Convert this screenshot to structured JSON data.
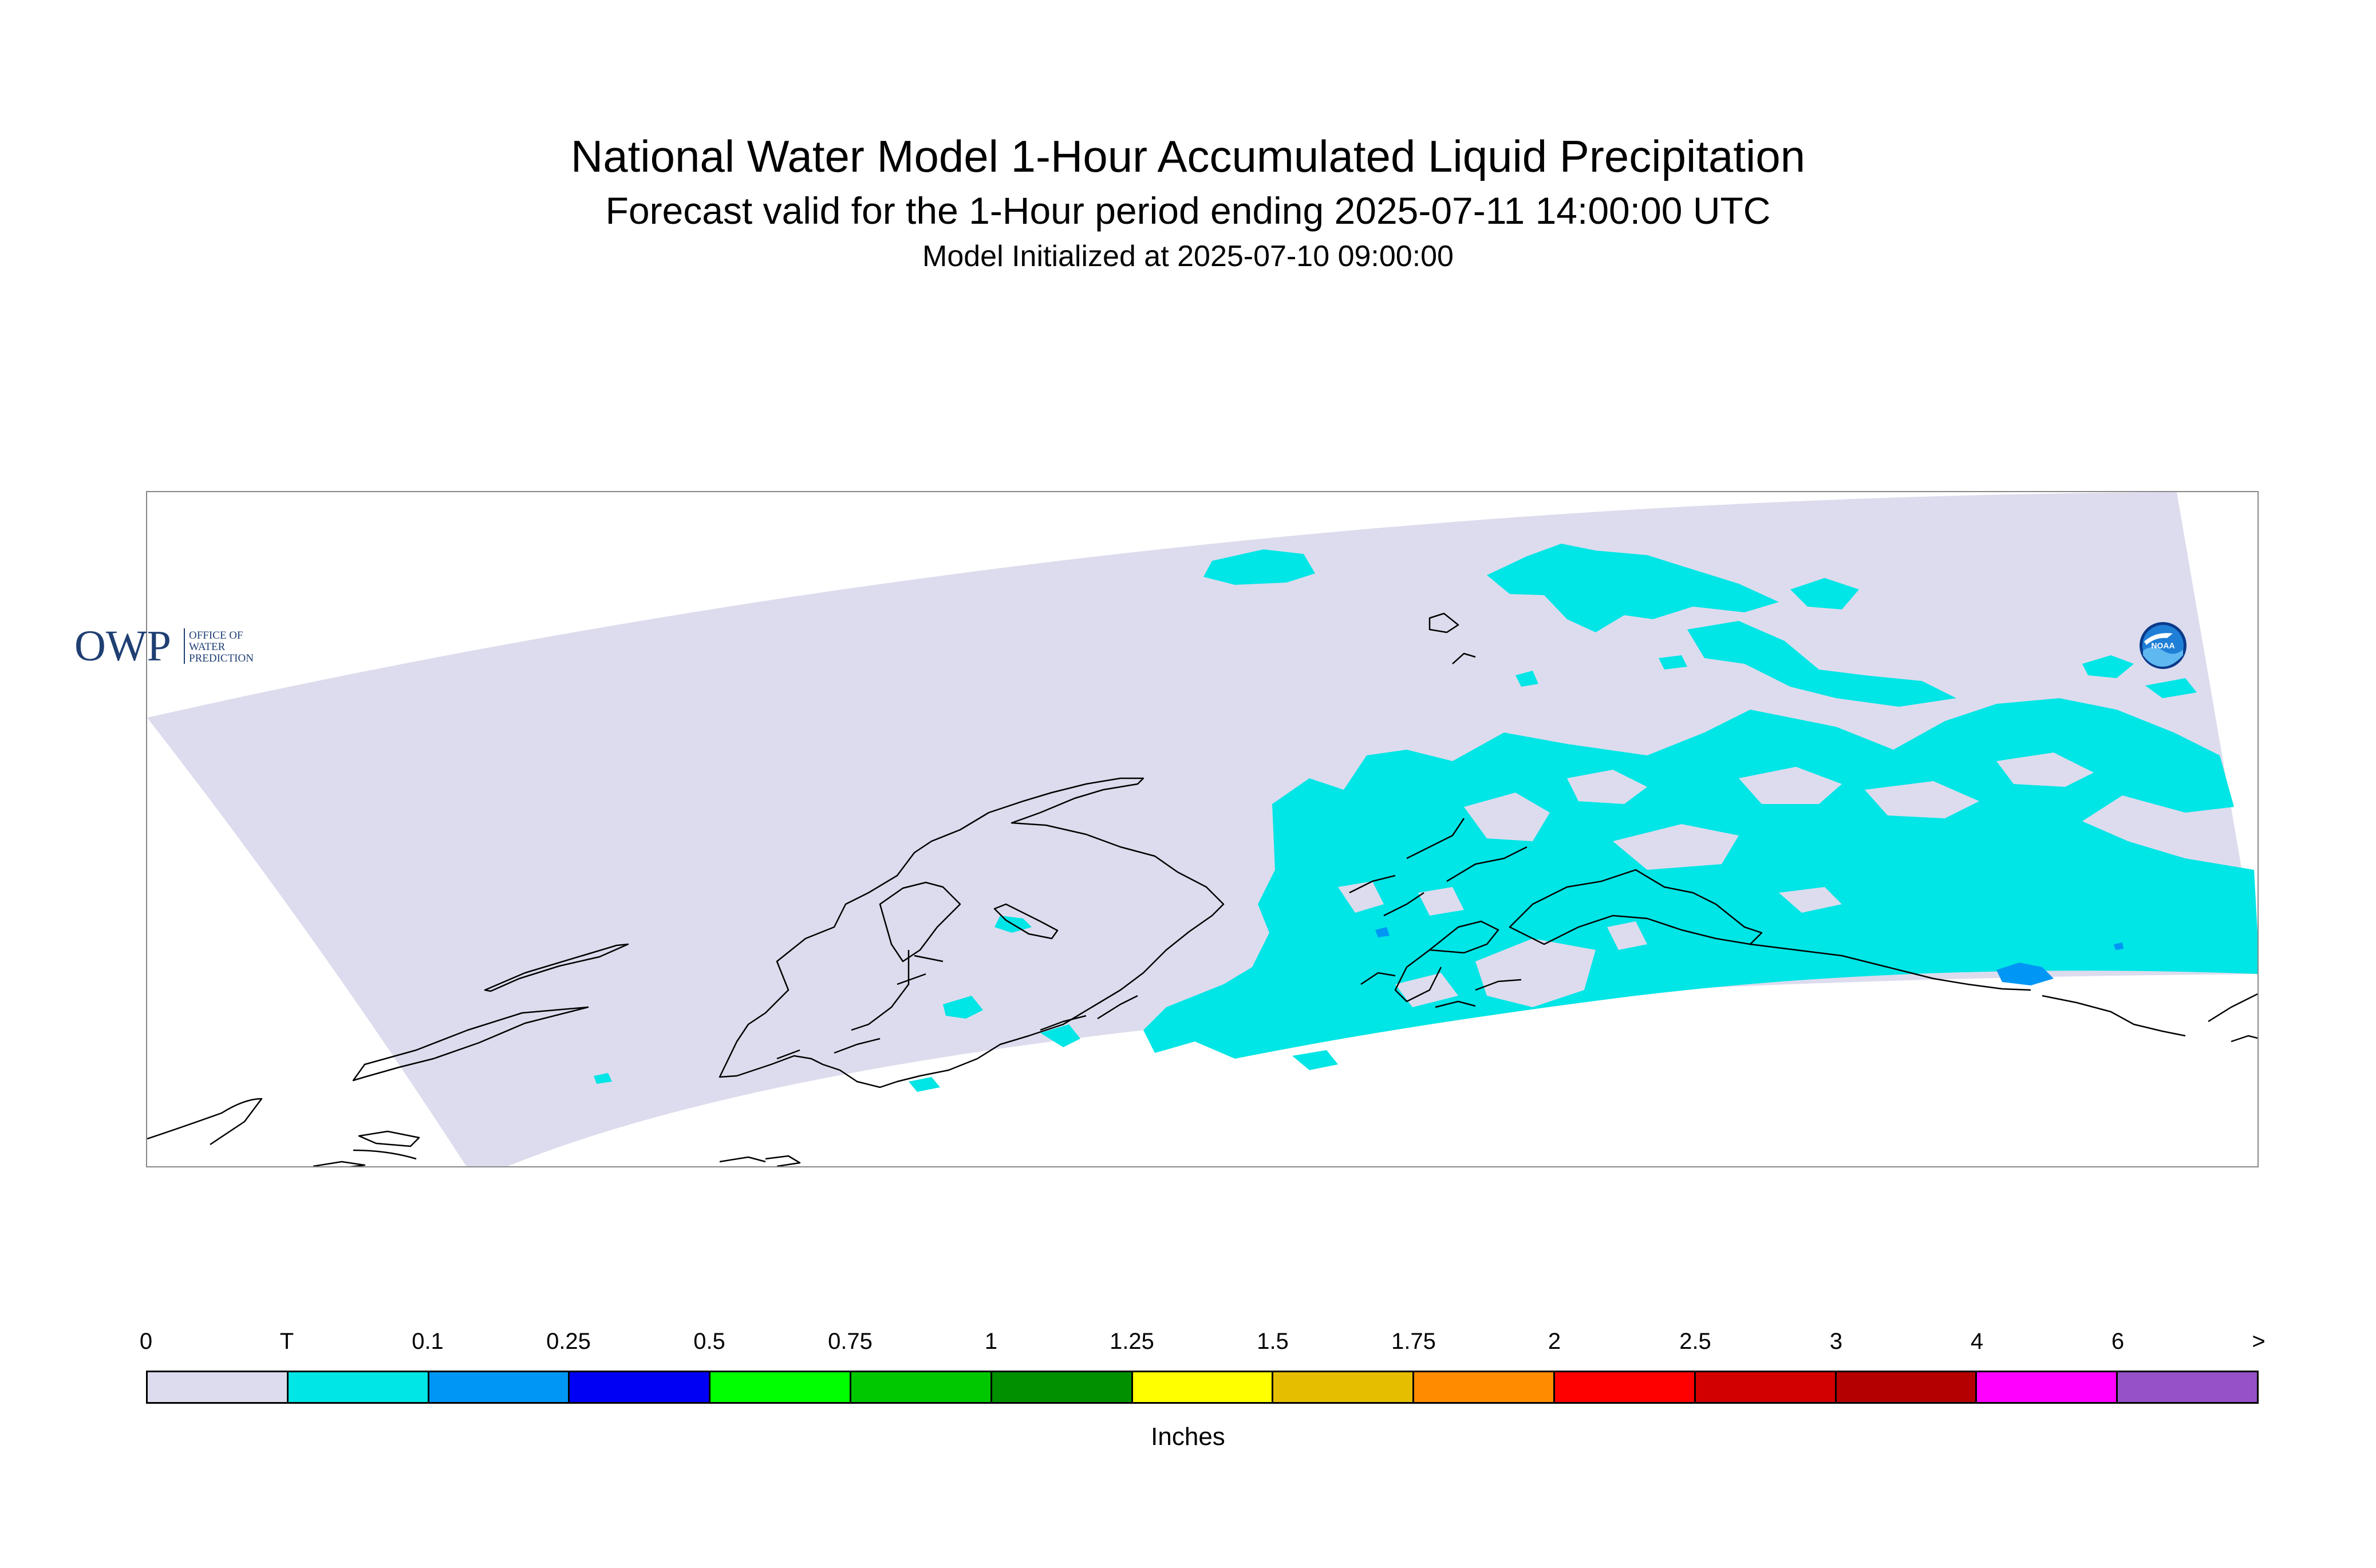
{
  "header": {
    "title": "National Water Model 1-Hour Accumulated Liquid Precipitation",
    "subtitle": "Forecast valid for the 1-Hour period ending 2025-07-11 14:00:00 UTC",
    "init": "Model Initialized at 2025-07-10 09:00:00"
  },
  "logos": {
    "owp_mark": "OWP",
    "owp_line1": "OFFICE OF",
    "owp_line2": "WATER",
    "owp_line3": "PREDICTION",
    "noaa_mark": "NOAA"
  },
  "colors": {
    "domain_fill": "#dcdcee",
    "trace": "#00e5e5",
    "light_blue": "#0096f5",
    "coastline": "#000000",
    "map_border": "#888888"
  },
  "legend": {
    "units": "Inches",
    "labels": [
      "0",
      "T",
      "0.1",
      "0.25",
      "0.5",
      "0.75",
      "1",
      "1.25",
      "1.5",
      "1.75",
      "2",
      "2.5",
      "3",
      "4",
      "6",
      ">"
    ],
    "colors": [
      "#dcdcee",
      "#00e5e5",
      "#0096f5",
      "#0000f5",
      "#00ff00",
      "#00c800",
      "#009000",
      "#ffff00",
      "#e6be00",
      "#ff8c00",
      "#ff0000",
      "#d20000",
      "#b40000",
      "#ff00ff",
      "#9650c8"
    ]
  }
}
